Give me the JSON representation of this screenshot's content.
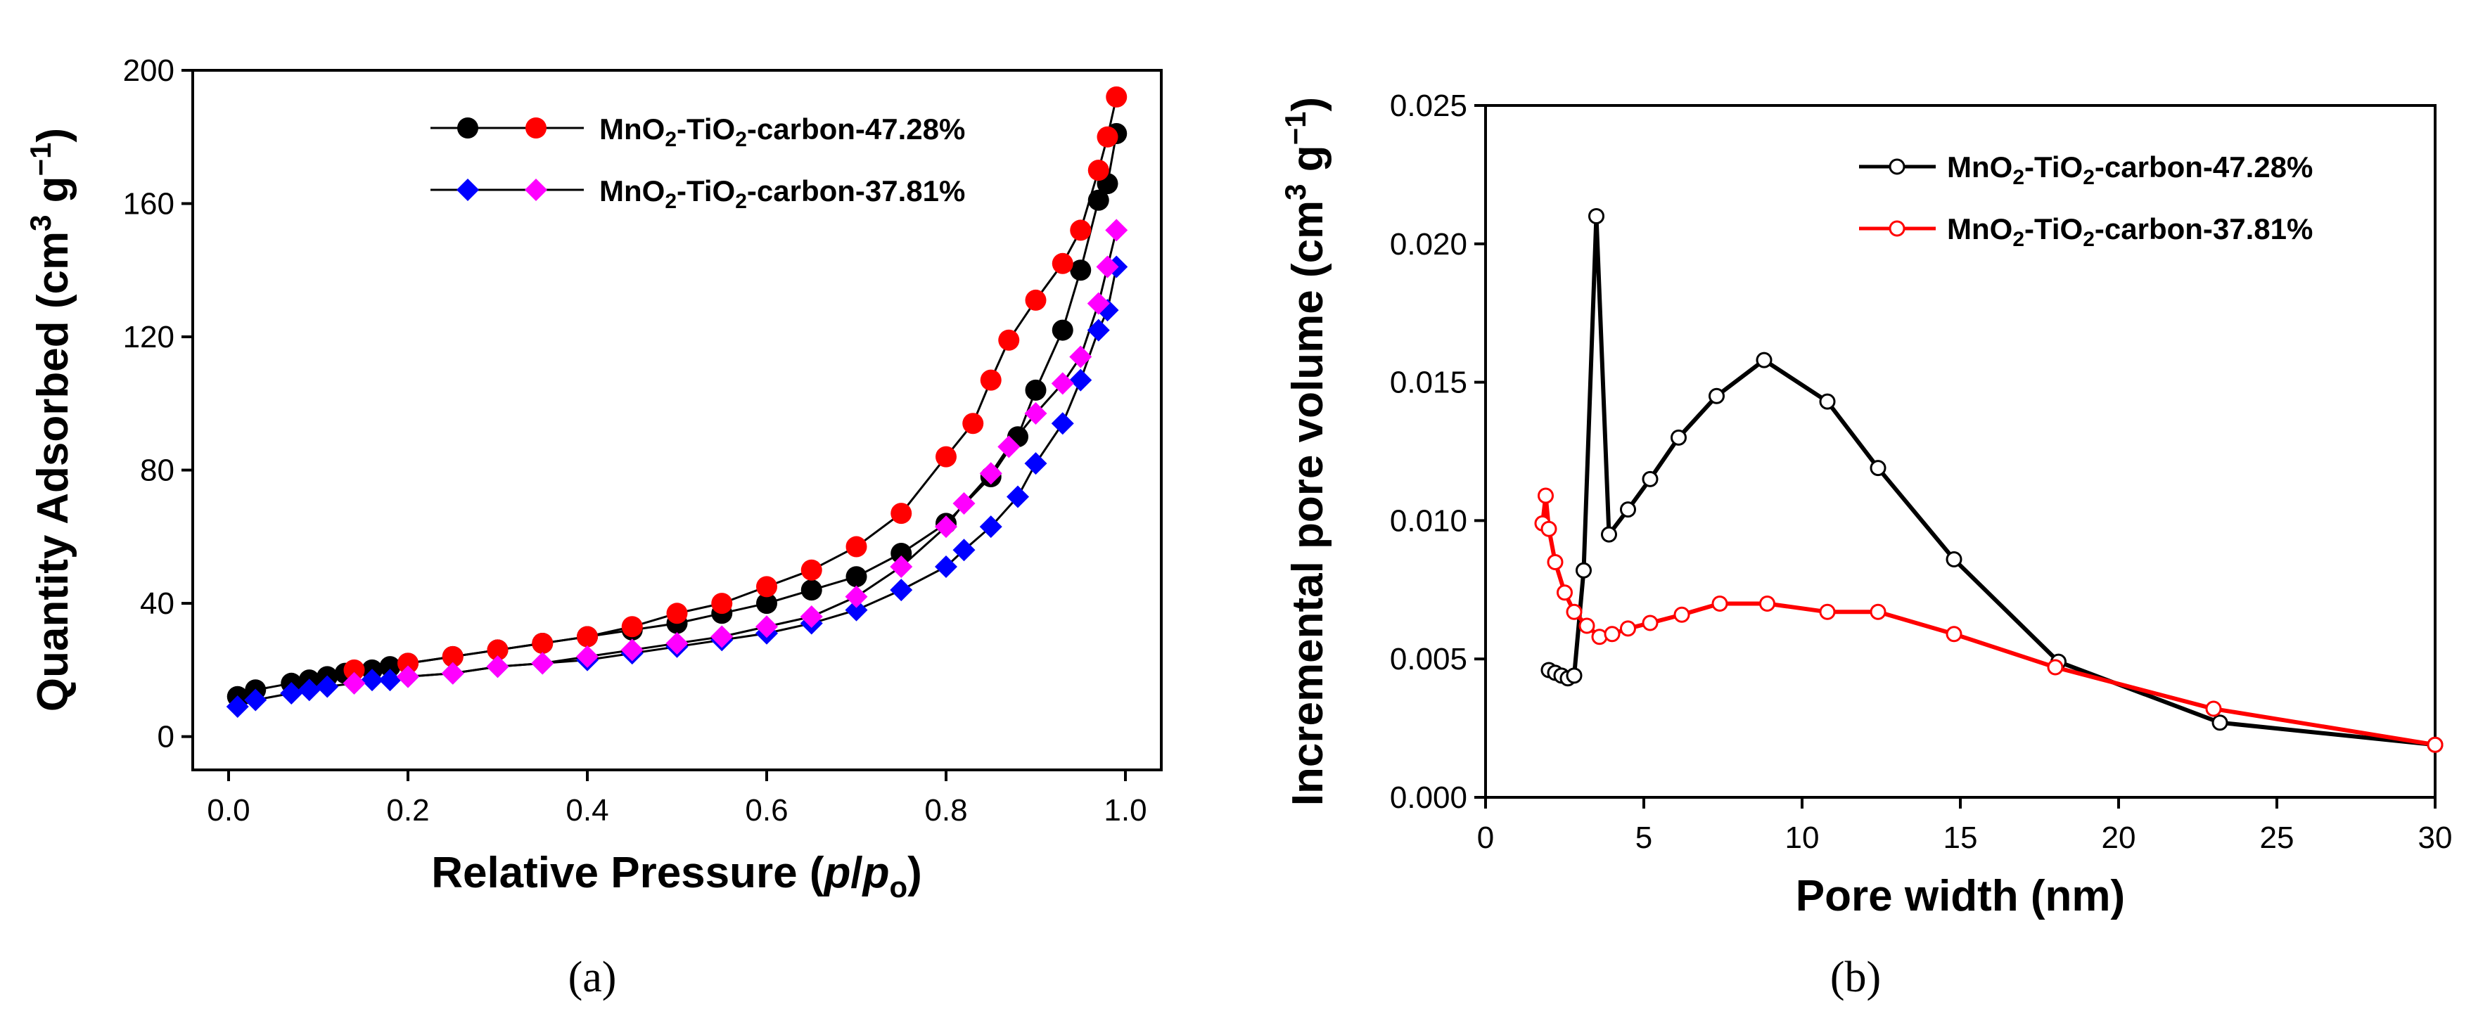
{
  "chart_data": [
    {
      "panel": "(a)",
      "type": "scatter",
      "xlabel": "Relative Pressure (p/po)",
      "ylabel": "Quantity Adsorbed (cm3 g-1)",
      "xlim": [
        -0.04,
        1.04
      ],
      "ylim": [
        -10,
        200
      ],
      "xticks": [
        "0.0",
        "0.2",
        "0.4",
        "0.6",
        "0.8",
        "1.0"
      ],
      "yticks": [
        "0",
        "40",
        "80",
        "120",
        "160",
        "200"
      ],
      "legend_position": "top-left",
      "legend": [
        {
          "label": "MnO2-TiO2-carbon-47.28%"
        },
        {
          "label": "MnO2-TiO2-carbon-37.81%"
        }
      ],
      "series": [
        {
          "name": "MnO2-TiO2-carbon-47.28%",
          "branch": "adsorption",
          "marker": "circle",
          "color": "#000000",
          "x": [
            0.01,
            0.03,
            0.07,
            0.09,
            0.11,
            0.13,
            0.16,
            0.18,
            0.2,
            0.25,
            0.3,
            0.35,
            0.4,
            0.45,
            0.5,
            0.55,
            0.6,
            0.65,
            0.7,
            0.75,
            0.8,
            0.85,
            0.88,
            0.9,
            0.93,
            0.95,
            0.97,
            0.98,
            0.99
          ],
          "y": [
            12,
            14,
            16,
            17,
            18,
            19,
            20,
            21,
            22,
            24,
            26,
            28,
            30,
            32,
            34,
            37,
            40,
            44,
            48,
            55,
            64,
            78,
            90,
            104,
            122,
            140,
            161,
            166,
            181
          ]
        },
        {
          "name": "MnO2-TiO2-carbon-47.28%",
          "branch": "desorption",
          "marker": "circle",
          "color": "#ff0000",
          "x": [
            0.99,
            0.98,
            0.97,
            0.95,
            0.93,
            0.9,
            0.87,
            0.85,
            0.83,
            0.8,
            0.75,
            0.7,
            0.65,
            0.6,
            0.55,
            0.5,
            0.45,
            0.4,
            0.35,
            0.3,
            0.25,
            0.2,
            0.14
          ],
          "y": [
            192,
            180,
            170,
            152,
            142,
            131,
            119,
            107,
            94,
            84,
            67,
            57,
            50,
            45,
            40,
            37,
            33,
            30,
            28,
            26,
            24,
            22,
            20
          ]
        },
        {
          "name": "MnO2-TiO2-carbon-37.81%",
          "branch": "adsorption",
          "marker": "diamond",
          "color": "#0000ff",
          "x": [
            0.01,
            0.03,
            0.07,
            0.09,
            0.11,
            0.14,
            0.16,
            0.18,
            0.2,
            0.25,
            0.3,
            0.35,
            0.4,
            0.45,
            0.5,
            0.55,
            0.6,
            0.65,
            0.7,
            0.75,
            0.8,
            0.82,
            0.85,
            0.88,
            0.9,
            0.93,
            0.95,
            0.97,
            0.98,
            0.99
          ],
          "y": [
            9,
            11,
            13,
            14,
            15,
            16,
            17,
            17,
            18,
            19,
            21,
            22,
            23,
            25,
            27,
            29,
            31,
            34,
            38,
            44,
            51,
            56,
            63,
            72,
            82,
            94,
            107,
            122,
            128,
            141
          ]
        },
        {
          "name": "MnO2-TiO2-carbon-37.81%",
          "branch": "desorption",
          "marker": "diamond",
          "color": "#ff00ff",
          "x": [
            0.99,
            0.98,
            0.97,
            0.95,
            0.93,
            0.9,
            0.87,
            0.85,
            0.82,
            0.8,
            0.75,
            0.7,
            0.65,
            0.6,
            0.55,
            0.5,
            0.45,
            0.4,
            0.35,
            0.3,
            0.25,
            0.2,
            0.14
          ],
          "y": [
            152,
            141,
            130,
            114,
            106,
            97,
            87,
            79,
            70,
            63,
            51,
            42,
            36,
            33,
            30,
            28,
            26,
            24,
            22,
            21,
            19,
            18,
            16
          ]
        }
      ]
    },
    {
      "panel": "(b)",
      "type": "line",
      "xlabel": "Pore width (nm)",
      "ylabel": "Incremental pore volume (cm3 g-1)",
      "xlim": [
        0,
        30
      ],
      "ylim": [
        0,
        0.025
      ],
      "xticks": [
        "0",
        "5",
        "10",
        "15",
        "20",
        "25",
        "30"
      ],
      "yticks": [
        "0.000",
        "0.005",
        "0.010",
        "0.015",
        "0.020",
        "0.025"
      ],
      "legend_position": "top-right",
      "legend": [
        {
          "label": "MnO2-TiO2-carbon-47.28%"
        },
        {
          "label": "MnO2-TiO2-carbon-37.81%"
        }
      ],
      "series": [
        {
          "name": "MnO2-TiO2-carbon-47.28%",
          "marker": "open-circle",
          "color": "#000000",
          "x": [
            2.0,
            2.2,
            2.4,
            2.6,
            2.8,
            3.1,
            3.5,
            3.9,
            4.5,
            5.2,
            6.1,
            7.3,
            8.8,
            10.8,
            12.4,
            14.8,
            18.1,
            23.2,
            30
          ],
          "y": [
            0.0046,
            0.0045,
            0.0044,
            0.0043,
            0.0044,
            0.0082,
            0.021,
            0.0095,
            0.0104,
            0.0115,
            0.013,
            0.0145,
            0.0158,
            0.0143,
            0.0119,
            0.0086,
            0.0049,
            0.0027,
            0.0019
          ]
        },
        {
          "name": "MnO2-TiO2-carbon-37.81%",
          "marker": "open-circle",
          "color": "#ff0000",
          "x": [
            1.8,
            1.9,
            2.0,
            2.2,
            2.5,
            2.8,
            3.2,
            3.6,
            4.0,
            4.5,
            5.2,
            6.2,
            7.4,
            8.9,
            10.8,
            12.4,
            14.8,
            18.0,
            23.0,
            30
          ],
          "y": [
            0.0099,
            0.0109,
            0.0097,
            0.0085,
            0.0074,
            0.0067,
            0.0062,
            0.0058,
            0.0059,
            0.0061,
            0.0063,
            0.0066,
            0.007,
            0.007,
            0.0067,
            0.0067,
            0.0059,
            0.0047,
            0.0032,
            0.0019
          ]
        }
      ]
    }
  ],
  "panel_labels": [
    "(a)",
    "(b)"
  ],
  "colors": {
    "black": "#000000",
    "red": "#ff0000",
    "blue": "#0000ff",
    "magenta": "#ff00ff"
  }
}
